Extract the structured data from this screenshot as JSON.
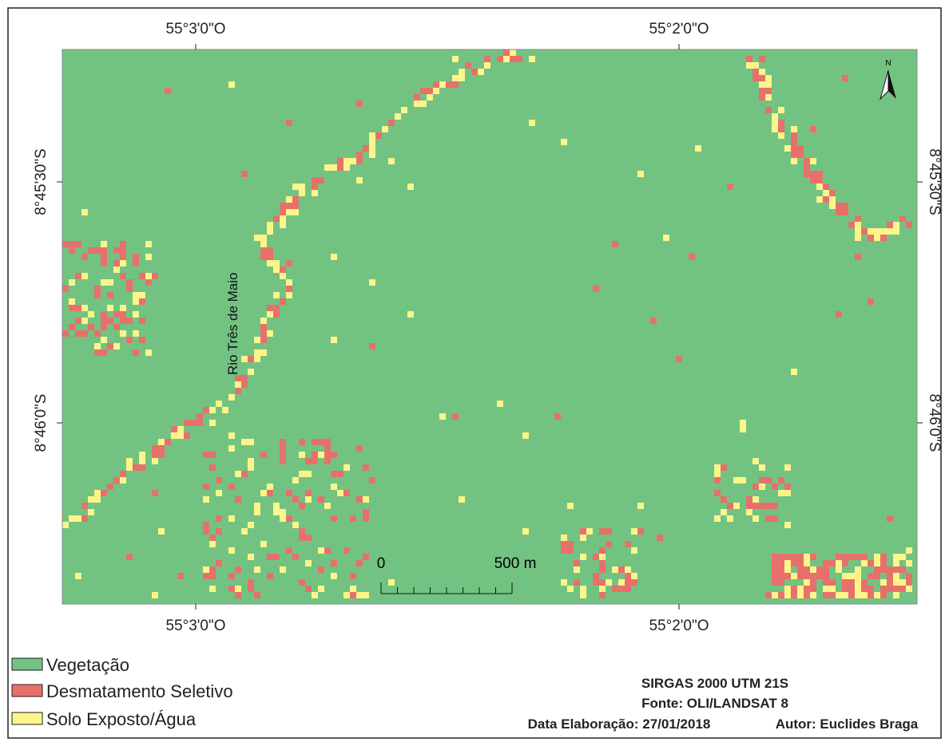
{
  "map": {
    "top_labels": [
      "55°3'0\"O",
      "55°2'0\"O"
    ],
    "bottom_labels": [
      "55°3'0\"O",
      "55°2'0\"O"
    ],
    "left_labels": [
      "8°45'30\"S",
      "8°46'0\"S"
    ],
    "right_labels": [
      "8°45'30\"S",
      "8°46'0\"S"
    ],
    "river_label": "Rio Três de Maio",
    "north": "N",
    "scale": {
      "start": "0",
      "end": "500 m"
    }
  },
  "legend": {
    "items": [
      "Vegetação",
      "Desmatamento Seletivo",
      "Solo Exposto/Água"
    ]
  },
  "credits": {
    "projection": "SIRGAS 2000 UTM 21S",
    "source": "Fonte: OLI/LANDSAT 8",
    "date": "Data Elaboração: 27/01/2018",
    "author": "Autor: Euclides Braga"
  }
}
